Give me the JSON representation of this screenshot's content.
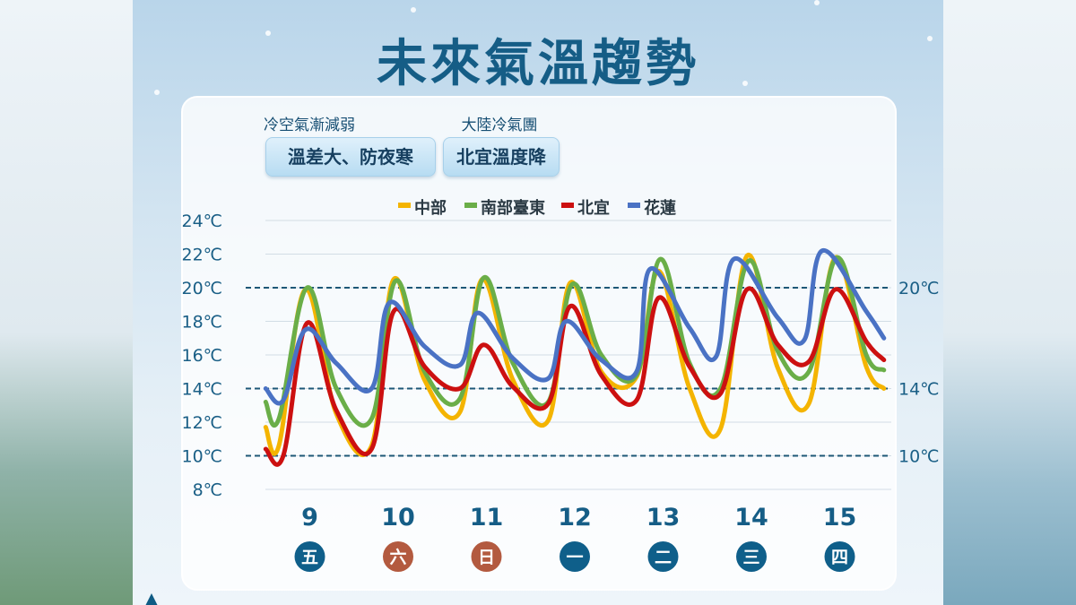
{
  "title": "未來氣溫趨勢",
  "notes": [
    {
      "label": "冷空氣漸減弱",
      "pill": "溫差大、防夜寒"
    },
    {
      "label": "大陸冷氣團",
      "pill": "北宜溫度降"
    }
  ],
  "chart_data": {
    "type": "line",
    "title": "未來氣溫趨勢",
    "legend_position": "top",
    "ylim": [
      8,
      24
    ],
    "y_ticks": [
      8,
      10,
      12,
      14,
      16,
      18,
      20,
      22,
      24
    ],
    "y_tick_suffix": "℃",
    "reference_lines": [
      20,
      14,
      10
    ],
    "reference_labels": [
      "20℃",
      "14℃",
      "10℃"
    ],
    "categories": [
      "9",
      "10",
      "11",
      "12",
      "13",
      "14",
      "15"
    ],
    "weekdays": [
      {
        "label": "五",
        "color": "#0f5f8a"
      },
      {
        "label": "六",
        "color": "#b35a3f"
      },
      {
        "label": "日",
        "color": "#b35a3f"
      },
      {
        "label": "一",
        "color": "#0f5f8a"
      },
      {
        "label": "二",
        "color": "#0f5f8a"
      },
      {
        "label": "三",
        "color": "#0f5f8a"
      },
      {
        "label": "四",
        "color": "#0f5f8a"
      }
    ],
    "x_start": 8.5,
    "x_end": 15.5,
    "series": [
      {
        "name": "中部",
        "color": "#f4b400",
        "points": [
          [
            8.5,
            11.7
          ],
          [
            8.65,
            10.6
          ],
          [
            8.95,
            19.9
          ],
          [
            9.3,
            12.5
          ],
          [
            9.7,
            10.6
          ],
          [
            9.95,
            20.5
          ],
          [
            10.3,
            14.5
          ],
          [
            10.7,
            12.6
          ],
          [
            10.95,
            20.5
          ],
          [
            11.3,
            14.5
          ],
          [
            11.7,
            12.1
          ],
          [
            11.95,
            20.3
          ],
          [
            12.3,
            15.0
          ],
          [
            12.7,
            14.7
          ],
          [
            12.95,
            21.0
          ],
          [
            13.3,
            14.0
          ],
          [
            13.65,
            11.6
          ],
          [
            13.95,
            21.9
          ],
          [
            14.3,
            15.2
          ],
          [
            14.65,
            13.1
          ],
          [
            14.95,
            21.8
          ],
          [
            15.3,
            15.3
          ],
          [
            15.5,
            14.0
          ]
        ]
      },
      {
        "name": "南部臺東",
        "color": "#6aae48",
        "points": [
          [
            8.5,
            13.2
          ],
          [
            8.65,
            12.2
          ],
          [
            8.97,
            20.0
          ],
          [
            9.3,
            14.0
          ],
          [
            9.7,
            12.2
          ],
          [
            9.97,
            20.4
          ],
          [
            10.3,
            15.0
          ],
          [
            10.7,
            13.4
          ],
          [
            10.97,
            20.6
          ],
          [
            11.3,
            15.5
          ],
          [
            11.7,
            13.2
          ],
          [
            11.97,
            20.2
          ],
          [
            12.3,
            16.0
          ],
          [
            12.7,
            14.8
          ],
          [
            12.97,
            21.7
          ],
          [
            13.3,
            15.5
          ],
          [
            13.65,
            14.0
          ],
          [
            13.97,
            21.6
          ],
          [
            14.3,
            16.2
          ],
          [
            14.65,
            15.0
          ],
          [
            14.97,
            21.8
          ],
          [
            15.3,
            16.0
          ],
          [
            15.5,
            15.1
          ]
        ]
      },
      {
        "name": "北宜",
        "color": "#cc1010",
        "points": [
          [
            8.5,
            10.4
          ],
          [
            8.7,
            10.0
          ],
          [
            8.97,
            17.9
          ],
          [
            9.3,
            12.7
          ],
          [
            9.7,
            10.4
          ],
          [
            9.95,
            18.6
          ],
          [
            10.3,
            15.3
          ],
          [
            10.7,
            14.0
          ],
          [
            10.97,
            16.6
          ],
          [
            11.3,
            14.1
          ],
          [
            11.7,
            13.1
          ],
          [
            11.95,
            18.9
          ],
          [
            12.3,
            14.8
          ],
          [
            12.7,
            13.3
          ],
          [
            12.95,
            19.4
          ],
          [
            13.3,
            15.3
          ],
          [
            13.65,
            13.7
          ],
          [
            13.95,
            19.9
          ],
          [
            14.3,
            16.6
          ],
          [
            14.65,
            15.6
          ],
          [
            14.95,
            19.9
          ],
          [
            15.3,
            16.8
          ],
          [
            15.5,
            15.7
          ]
        ]
      },
      {
        "name": "花蓮",
        "color": "#4a72c4",
        "points": [
          [
            8.5,
            14.0
          ],
          [
            8.7,
            13.3
          ],
          [
            8.95,
            17.5
          ],
          [
            9.3,
            15.5
          ],
          [
            9.7,
            14.0
          ],
          [
            9.9,
            19.1
          ],
          [
            10.3,
            16.5
          ],
          [
            10.7,
            15.4
          ],
          [
            10.9,
            18.5
          ],
          [
            11.3,
            15.8
          ],
          [
            11.7,
            14.6
          ],
          [
            11.9,
            18.0
          ],
          [
            12.3,
            15.7
          ],
          [
            12.7,
            15.0
          ],
          [
            12.85,
            21.1
          ],
          [
            13.3,
            17.6
          ],
          [
            13.6,
            15.9
          ],
          [
            13.8,
            21.7
          ],
          [
            14.3,
            18.2
          ],
          [
            14.6,
            16.9
          ],
          [
            14.8,
            22.2
          ],
          [
            15.3,
            18.6
          ],
          [
            15.5,
            17.0
          ]
        ]
      }
    ]
  }
}
